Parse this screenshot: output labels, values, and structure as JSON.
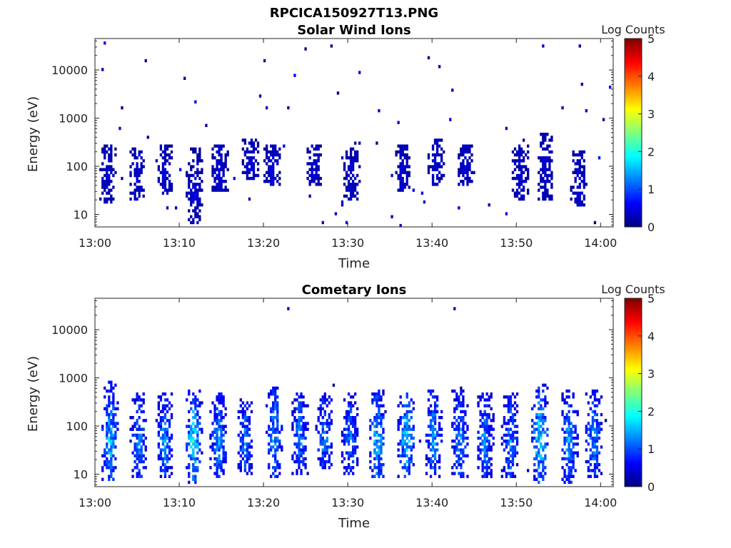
{
  "figure_title": "RPCICA150927T13.PNG",
  "colors": {
    "cmap": [
      "#00007f",
      "#0000ff",
      "#007fff",
      "#00ffff",
      "#7fff7f",
      "#ffff00",
      "#ff7f00",
      "#ff0000",
      "#7f0000"
    ],
    "frame": "#222222"
  },
  "chart_data": [
    {
      "type": "heatmap",
      "title": "Solar Wind Ions",
      "xlabel": "Time",
      "ylabel": "Energy (eV)",
      "x_ticks": [
        "13:00",
        "13:10",
        "13:20",
        "13:30",
        "13:40",
        "13:50",
        "14:00"
      ],
      "x_range_minutes": [
        0,
        61.5
      ],
      "y_ticks": [
        "10",
        "100",
        "1000",
        "10000"
      ],
      "y_scale": "log",
      "y_range": [
        5.5,
        45000
      ],
      "colorbar_label": "Log Counts",
      "colorbar_ticks": [
        "0",
        "1",
        "2",
        "3",
        "4",
        "5"
      ],
      "colorbar_range": [
        0,
        5
      ],
      "bursts": [
        {
          "t": 1.5,
          "emin": 18,
          "emax": 300,
          "peak": 0.5
        },
        {
          "t": 5.0,
          "emin": 20,
          "emax": 250,
          "peak": 0.5
        },
        {
          "t": 8.3,
          "emin": 25,
          "emax": 300,
          "peak": 0.5
        },
        {
          "t": 11.8,
          "emin": 6,
          "emax": 250,
          "peak": 0.5
        },
        {
          "t": 14.8,
          "emin": 30,
          "emax": 300,
          "peak": 0.5
        },
        {
          "t": 18.5,
          "emin": 50,
          "emax": 400,
          "peak": 0.5
        },
        {
          "t": 21.0,
          "emin": 40,
          "emax": 300,
          "peak": 0.5
        },
        {
          "t": 26.0,
          "emin": 40,
          "emax": 300,
          "peak": 0.5
        },
        {
          "t": 30.5,
          "emin": 20,
          "emax": 250,
          "peak": 0.5
        },
        {
          "t": 36.5,
          "emin": 30,
          "emax": 300,
          "peak": 0.5
        },
        {
          "t": 40.5,
          "emin": 40,
          "emax": 400,
          "peak": 0.5
        },
        {
          "t": 44.0,
          "emin": 40,
          "emax": 300,
          "peak": 0.5
        },
        {
          "t": 50.5,
          "emin": 20,
          "emax": 300,
          "peak": 0.5
        },
        {
          "t": 53.5,
          "emin": 20,
          "emax": 500,
          "peak": 0.5
        },
        {
          "t": 57.5,
          "emin": 15,
          "emax": 200,
          "peak": 0.5
        }
      ],
      "scatter_density": 0.0045,
      "background_max_count": 0.6
    },
    {
      "type": "heatmap",
      "title": "Cometary Ions",
      "xlabel": "Time",
      "ylabel": "Energy (eV)",
      "x_ticks": [
        "13:00",
        "13:10",
        "13:20",
        "13:30",
        "13:40",
        "13:50",
        "14:00"
      ],
      "x_range_minutes": [
        0,
        61.5
      ],
      "y_ticks": [
        "10",
        "100",
        "1000",
        "10000"
      ],
      "y_scale": "log",
      "y_range": [
        5.5,
        45000
      ],
      "colorbar_label": "Log Counts",
      "colorbar_ticks": [
        "0",
        "1",
        "2",
        "3",
        "4",
        "5"
      ],
      "colorbar_range": [
        0,
        5
      ],
      "bursts": [
        {
          "t": 1.8,
          "emin": 6,
          "emax": 900,
          "peak": 1.8
        },
        {
          "t": 5.2,
          "emin": 8,
          "emax": 500,
          "peak": 1.5
        },
        {
          "t": 8.3,
          "emin": 8,
          "emax": 500,
          "peak": 1.6
        },
        {
          "t": 11.7,
          "emin": 6,
          "emax": 600,
          "peak": 2.1
        },
        {
          "t": 14.7,
          "emin": 8,
          "emax": 500,
          "peak": 1.6
        },
        {
          "t": 17.8,
          "emin": 10,
          "emax": 400,
          "peak": 1.4
        },
        {
          "t": 21.3,
          "emin": 8,
          "emax": 700,
          "peak": 1.6
        },
        {
          "t": 24.3,
          "emin": 10,
          "emax": 500,
          "peak": 1.5
        },
        {
          "t": 27.2,
          "emin": 12,
          "emax": 500,
          "peak": 1.5
        },
        {
          "t": 30.3,
          "emin": 10,
          "emax": 500,
          "peak": 1.4
        },
        {
          "t": 33.5,
          "emin": 8,
          "emax": 600,
          "peak": 1.9
        },
        {
          "t": 37.0,
          "emin": 8,
          "emax": 500,
          "peak": 2.0
        },
        {
          "t": 40.2,
          "emin": 8,
          "emax": 600,
          "peak": 1.7
        },
        {
          "t": 43.3,
          "emin": 8,
          "emax": 600,
          "peak": 1.6
        },
        {
          "t": 46.3,
          "emin": 8,
          "emax": 500,
          "peak": 1.5
        },
        {
          "t": 49.3,
          "emin": 8,
          "emax": 500,
          "peak": 1.5
        },
        {
          "t": 52.8,
          "emin": 6,
          "emax": 800,
          "peak": 2.1
        },
        {
          "t": 56.3,
          "emin": 6,
          "emax": 600,
          "peak": 1.7
        },
        {
          "t": 59.2,
          "emin": 8,
          "emax": 600,
          "peak": 1.6
        }
      ],
      "scatter_density": 0.0006,
      "background_max_count": 0.5
    }
  ]
}
